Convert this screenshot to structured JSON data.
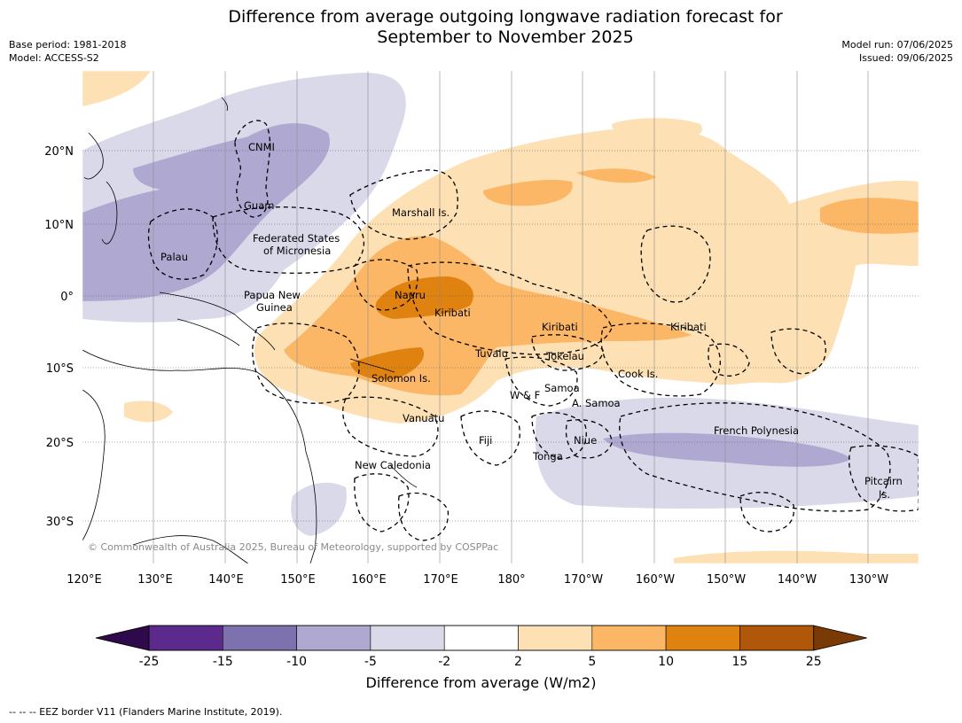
{
  "title_line1": "Difference from average outgoing longwave radiation forecast for",
  "title_line2": "September to November 2025",
  "meta_left": {
    "base_period": "Base period: 1981-2018",
    "model": "Model: ACCESS-S2"
  },
  "meta_right": {
    "model_run": "Model run: 07/06/2025",
    "issued": "Issued: 09/06/2025"
  },
  "map": {
    "lon_ticks": [
      "120°E",
      "130°E",
      "140°E",
      "150°E",
      "160°E",
      "170°E",
      "180°",
      "170°W",
      "160°W",
      "150°W",
      "140°W",
      "130°W"
    ],
    "lat_ticks": [
      "20°N",
      "10°N",
      "0°",
      "10°S",
      "20°S",
      "30°S"
    ],
    "regions": {
      "cnmi": "CNMI",
      "guam": "Guam",
      "marshall": "Marshall Is.",
      "fsm1": "Federated States",
      "fsm2": "of Micronesia",
      "palau": "Palau",
      "png1": "Papua New",
      "png2": "Guinea",
      "nauru": "Nauru",
      "kiribati_w": "Kiribati",
      "kiribati_c": "Kiribati",
      "kiribati_e": "Kiribati",
      "tuvalu": "Tuvalu",
      "tokelau": "Tokelau",
      "solomon": "Solomon Is.",
      "cook": "Cook Is.",
      "samoa": "Samoa",
      "wf": "W & F",
      "asamoa": "A. Samoa",
      "vanuatu": "Vanuatu",
      "fiji": "Fiji",
      "niue": "Niue",
      "tonga": "Tonga",
      "frpoly": "French Polynesia",
      "newcal": "New Caledonia",
      "pitcairn1": "Pitcairn",
      "pitcairn2": "Is."
    },
    "copyright": "© Commonwealth of Australia 2025, Bureau of Meteorology, supported by COSPPac"
  },
  "colorbar": {
    "labels": [
      "-25",
      "-15",
      "-10",
      "-5",
      "-2",
      "2",
      "5",
      "10",
      "15",
      "25"
    ],
    "colors": [
      "#5b2a8c",
      "#7e72ae",
      "#afa9d2",
      "#d9d9ea",
      "#ffffff",
      "#fde0b3",
      "#fbb766",
      "#e0820f",
      "#b0570a"
    ],
    "under_color": "#2f0a4a",
    "over_color": "#7a3a06",
    "title": "Difference from average (W/m2)"
  },
  "footnote": "--  --  -- EEZ border V11 (Flanders Marine Institute, 2019)."
}
